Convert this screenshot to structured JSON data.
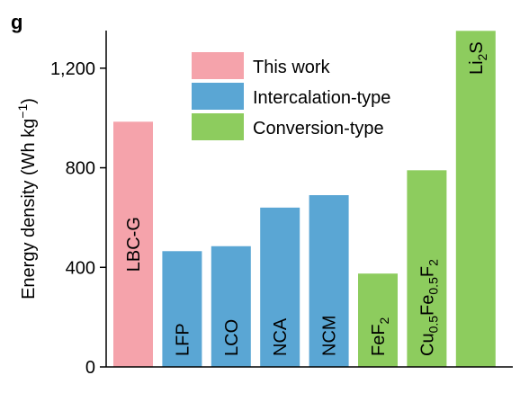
{
  "panel_label": "g",
  "colors": {
    "this_work": "#F5A3AB",
    "intercalation": "#5AA6D4",
    "conversion": "#8DCC5E"
  },
  "chart_data": {
    "type": "bar",
    "ylabel": {
      "main": "Energy density (Wh kg",
      "sup": "−1",
      "close": ")"
    },
    "ylim": [
      0,
      1380
    ],
    "yticks": [
      {
        "value": 0,
        "label": "0"
      },
      {
        "value": 400,
        "label": "400"
      },
      {
        "value": 800,
        "label": "800"
      },
      {
        "value": 1200,
        "label": "1,200"
      }
    ],
    "legend": {
      "position": "top-center",
      "entries": [
        {
          "key": "this_work",
          "label": "This work"
        },
        {
          "key": "intercalation",
          "label": "Intercalation-type"
        },
        {
          "key": "conversion",
          "label": "Conversion-type"
        }
      ]
    },
    "bars": [
      {
        "label": [
          {
            "t": "LBC-G"
          }
        ],
        "value": 985,
        "group": "this_work",
        "label_pos": "middle"
      },
      {
        "label": [
          {
            "t": "LFP"
          }
        ],
        "value": 465,
        "group": "intercalation",
        "label_pos": "bottom"
      },
      {
        "label": [
          {
            "t": "LCO"
          }
        ],
        "value": 485,
        "group": "intercalation",
        "label_pos": "bottom"
      },
      {
        "label": [
          {
            "t": "NCA"
          }
        ],
        "value": 640,
        "group": "intercalation",
        "label_pos": "bottom"
      },
      {
        "label": [
          {
            "t": "NCM"
          }
        ],
        "value": 690,
        "group": "intercalation",
        "label_pos": "bottom"
      },
      {
        "label": [
          {
            "t": "FeF"
          },
          {
            "t": "2",
            "sub": true
          }
        ],
        "value": 375,
        "group": "conversion",
        "label_pos": "bottom"
      },
      {
        "label": [
          {
            "t": "Cu"
          },
          {
            "t": "0.5",
            "sub": true
          },
          {
            "t": "Fe"
          },
          {
            "t": "0.5",
            "sub": true
          },
          {
            "t": "F"
          },
          {
            "t": "2",
            "sub": true
          }
        ],
        "value": 790,
        "group": "conversion",
        "label_pos": "bottom"
      },
      {
        "label": [
          {
            "t": "Li"
          },
          {
            "t": "2",
            "sub": true
          },
          {
            "t": "S"
          }
        ],
        "value": 1350,
        "group": "conversion",
        "label_pos": "top"
      }
    ]
  }
}
